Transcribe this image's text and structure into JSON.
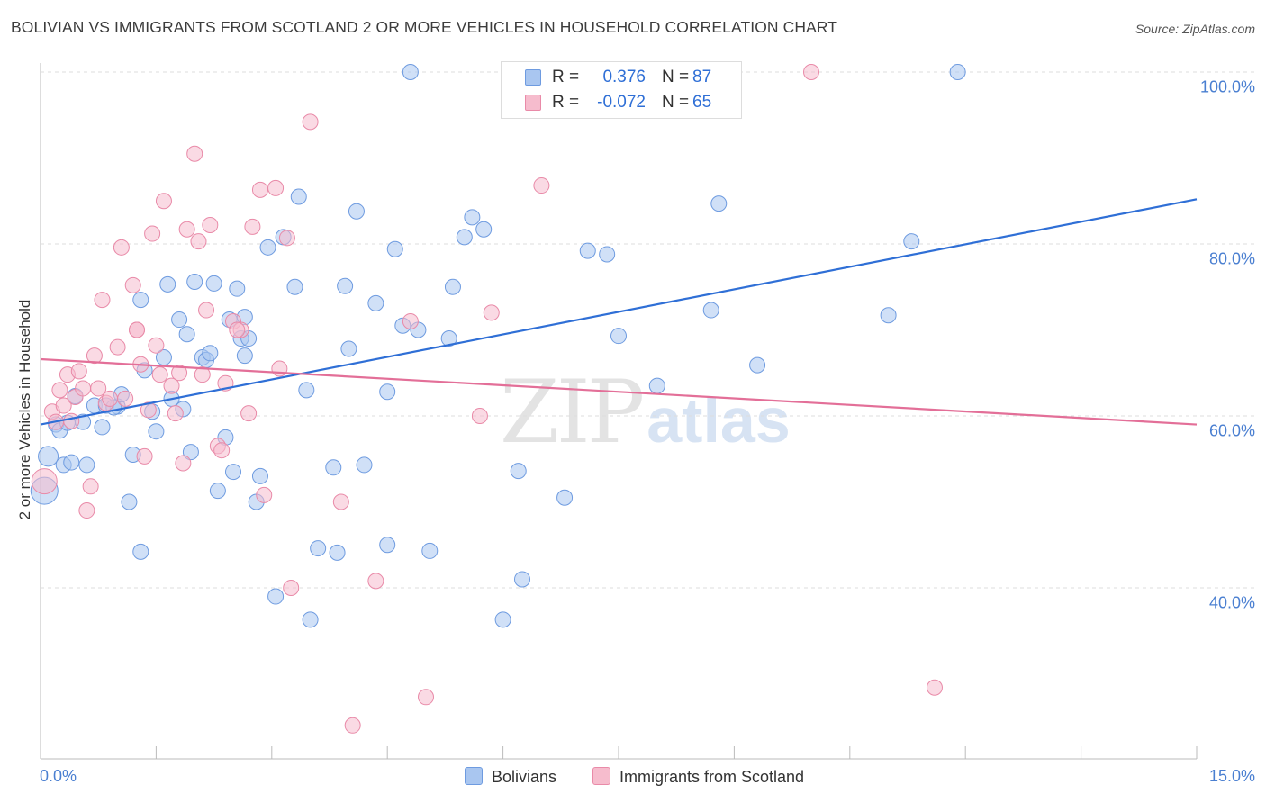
{
  "chart_data": {
    "type": "scatter",
    "title": "BOLIVIAN VS IMMIGRANTS FROM SCOTLAND 2 OR MORE VEHICLES IN HOUSEHOLD CORRELATION CHART",
    "source": "Source: ZipAtlas.com",
    "xlabel": "",
    "ylabel": "2 or more Vehicles in Household",
    "xlim": [
      0,
      15
    ],
    "ylim": [
      20,
      102
    ],
    "x_tick_labels": {
      "left": "0.0%",
      "right": "15.0%"
    },
    "y_ticks": [
      {
        "value": 100,
        "label": "100.0%"
      },
      {
        "value": 80,
        "label": "80.0%"
      },
      {
        "value": 60,
        "label": "60.0%"
      },
      {
        "value": 40,
        "label": "40.0%"
      }
    ],
    "grid": true,
    "watermark": {
      "zip": "ZIP",
      "atlas": "atlas"
    },
    "legend_stats": [
      {
        "series": "Bolivians",
        "r_label": "R =",
        "r_value": "0.376",
        "n_label": "N =",
        "n_value": "87",
        "color": "#a9c6f0",
        "stroke": "#6e9be0"
      },
      {
        "series": "Immigrants from Scotland",
        "r_label": "R =",
        "r_value": "-0.072",
        "n_label": "N =",
        "n_value": "65",
        "color": "#f6bccd",
        "stroke": "#e98aa8"
      }
    ],
    "series": [
      {
        "name": "Bolivians",
        "color": "#a9c6f0",
        "stroke": "#6e9be0",
        "trend": {
          "x": [
            0,
            15
          ],
          "y": [
            59.0,
            85.2
          ],
          "color": "#2f6fd6"
        },
        "points": [
          [
            0.05,
            51.3
          ],
          [
            0.1,
            55.3
          ],
          [
            0.2,
            59
          ],
          [
            0.25,
            58.3
          ],
          [
            0.3,
            54.3
          ],
          [
            0.35,
            59.2
          ],
          [
            0.45,
            62.3
          ],
          [
            0.55,
            59.3
          ],
          [
            0.6,
            54.3
          ],
          [
            0.7,
            61.2
          ],
          [
            0.8,
            58.7
          ],
          [
            0.85,
            61.2
          ],
          [
            1.0,
            61.1
          ],
          [
            1.05,
            62.5
          ],
          [
            1.15,
            50
          ],
          [
            1.2,
            55.5
          ],
          [
            1.3,
            73.5
          ],
          [
            1.3,
            44.2
          ],
          [
            1.35,
            65.3
          ],
          [
            1.45,
            60.5
          ],
          [
            1.5,
            58.2
          ],
          [
            1.6,
            66.8
          ],
          [
            1.65,
            75.3
          ],
          [
            1.7,
            62
          ],
          [
            1.8,
            71.2
          ],
          [
            1.85,
            60.8
          ],
          [
            1.9,
            69.5
          ],
          [
            1.95,
            55.8
          ],
          [
            2.0,
            75.6
          ],
          [
            2.1,
            66.8
          ],
          [
            2.15,
            66.5
          ],
          [
            2.2,
            67.3
          ],
          [
            2.25,
            75.4
          ],
          [
            2.3,
            51.3
          ],
          [
            2.4,
            57.5
          ],
          [
            2.45,
            71.2
          ],
          [
            2.5,
            53.5
          ],
          [
            2.55,
            74.8
          ],
          [
            2.6,
            69
          ],
          [
            2.65,
            71.5
          ],
          [
            2.7,
            69
          ],
          [
            2.8,
            50
          ],
          [
            2.85,
            53
          ],
          [
            2.95,
            79.6
          ],
          [
            3.05,
            39
          ],
          [
            3.15,
            80.8
          ],
          [
            3.3,
            75
          ],
          [
            3.35,
            85.5
          ],
          [
            3.45,
            63
          ],
          [
            3.5,
            36.3
          ],
          [
            3.6,
            44.6
          ],
          [
            3.8,
            54
          ],
          [
            3.85,
            44.1
          ],
          [
            3.95,
            75.1
          ],
          [
            4.0,
            67.8
          ],
          [
            4.1,
            83.8
          ],
          [
            4.2,
            54.3
          ],
          [
            4.35,
            73.1
          ],
          [
            4.5,
            62.8
          ],
          [
            4.6,
            79.4
          ],
          [
            4.7,
            70.5
          ],
          [
            4.8,
            100
          ],
          [
            4.9,
            70
          ],
          [
            5.05,
            44.3
          ],
          [
            5.3,
            69
          ],
          [
            5.35,
            75
          ],
          [
            5.5,
            80.8
          ],
          [
            5.6,
            83.1
          ],
          [
            5.75,
            81.7
          ],
          [
            6.0,
            36.3
          ],
          [
            6.2,
            53.6
          ],
          [
            6.25,
            41
          ],
          [
            7.1,
            79.2
          ],
          [
            7.35,
            78.8
          ],
          [
            7.5,
            69.3
          ],
          [
            8.0,
            63.5
          ],
          [
            8.7,
            72.3
          ],
          [
            8.8,
            84.7
          ],
          [
            9.3,
            65.9
          ],
          [
            11.0,
            71.7
          ],
          [
            11.3,
            80.3
          ],
          [
            11.9,
            100
          ],
          [
            0.4,
            54.6
          ],
          [
            0.95,
            61
          ],
          [
            2.65,
            67
          ],
          [
            4.5,
            45
          ],
          [
            6.8,
            50.5
          ]
        ]
      },
      {
        "name": "Immigrants from Scotland",
        "color": "#f6bccd",
        "stroke": "#e98aa8",
        "trend": {
          "x": [
            0,
            15
          ],
          "y": [
            66.6,
            59.0
          ],
          "color": "#e36f98"
        },
        "points": [
          [
            0.05,
            52.4
          ],
          [
            0.15,
            60.5
          ],
          [
            0.2,
            59.3
          ],
          [
            0.25,
            63
          ],
          [
            0.3,
            61.2
          ],
          [
            0.35,
            64.8
          ],
          [
            0.4,
            59.4
          ],
          [
            0.45,
            62.2
          ],
          [
            0.5,
            65.2
          ],
          [
            0.6,
            49
          ],
          [
            0.65,
            51.8
          ],
          [
            0.7,
            67
          ],
          [
            0.75,
            63.2
          ],
          [
            0.8,
            73.5
          ],
          [
            0.85,
            61.5
          ],
          [
            0.9,
            62
          ],
          [
            1.0,
            68
          ],
          [
            1.05,
            79.6
          ],
          [
            1.1,
            62
          ],
          [
            1.2,
            75.2
          ],
          [
            1.25,
            70
          ],
          [
            1.3,
            66
          ],
          [
            1.35,
            55.3
          ],
          [
            1.4,
            60.7
          ],
          [
            1.45,
            81.2
          ],
          [
            1.5,
            68.2
          ],
          [
            1.55,
            64.8
          ],
          [
            1.6,
            85
          ],
          [
            1.7,
            63.5
          ],
          [
            1.75,
            60.3
          ],
          [
            1.8,
            65
          ],
          [
            1.85,
            54.5
          ],
          [
            1.9,
            81.7
          ],
          [
            2.0,
            90.5
          ],
          [
            2.05,
            80.3
          ],
          [
            2.1,
            64.8
          ],
          [
            2.15,
            72.3
          ],
          [
            2.2,
            82.2
          ],
          [
            2.3,
            56.5
          ],
          [
            2.35,
            56
          ],
          [
            2.4,
            63.8
          ],
          [
            2.5,
            71
          ],
          [
            2.6,
            70
          ],
          [
            2.7,
            60.3
          ],
          [
            2.75,
            82
          ],
          [
            2.85,
            86.3
          ],
          [
            2.9,
            50.8
          ],
          [
            3.05,
            86.5
          ],
          [
            3.1,
            65.5
          ],
          [
            3.2,
            80.7
          ],
          [
            3.25,
            40
          ],
          [
            3.5,
            94.2
          ],
          [
            3.9,
            50
          ],
          [
            4.05,
            24
          ],
          [
            4.35,
            40.8
          ],
          [
            4.8,
            71
          ],
          [
            5.0,
            27.3
          ],
          [
            5.7,
            60
          ],
          [
            5.85,
            72
          ],
          [
            6.5,
            86.8
          ],
          [
            10.0,
            100
          ],
          [
            11.6,
            28.4
          ],
          [
            0.55,
            63.2
          ],
          [
            1.25,
            70
          ],
          [
            2.55,
            70
          ]
        ]
      }
    ]
  }
}
